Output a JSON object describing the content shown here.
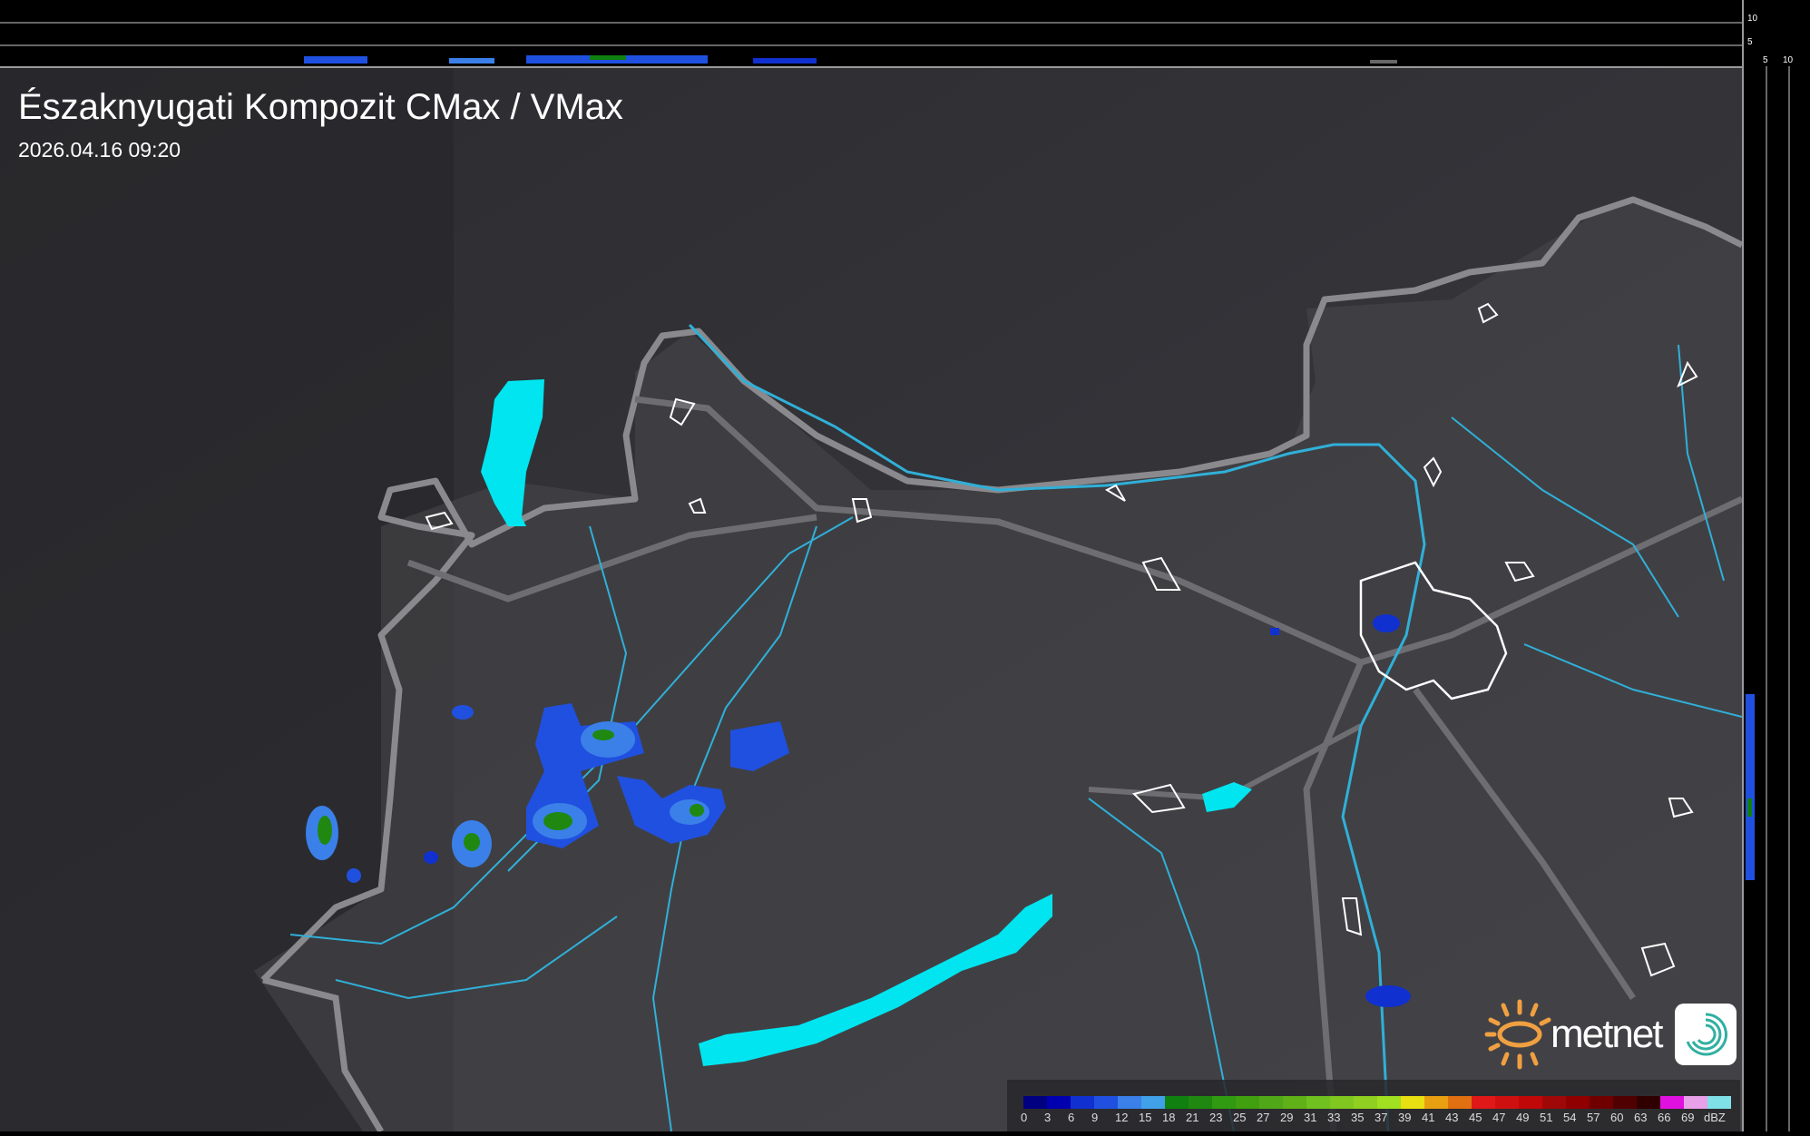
{
  "title": "Északnyugati Kompozit CMax / VMax",
  "timestamp": "2026.04.16 09:20",
  "side_profile_ticks": {
    "vertical": [
      "10",
      "5"
    ],
    "horizontal": [
      "5",
      "10"
    ]
  },
  "legend": {
    "unit": "dBZ",
    "labels": [
      "0",
      "3",
      "6",
      "9",
      "12",
      "15",
      "18",
      "21",
      "23",
      "25",
      "27",
      "29",
      "31",
      "33",
      "35",
      "37",
      "39",
      "41",
      "43",
      "45",
      "47",
      "49",
      "51",
      "54",
      "57",
      "60",
      "63",
      "66",
      "69"
    ],
    "colors": [
      "#000080",
      "#0000b0",
      "#1030d0",
      "#2050e0",
      "#3a80e8",
      "#40a0e8",
      "#108010",
      "#208810",
      "#309a10",
      "#40a010",
      "#50a818",
      "#60b018",
      "#70c020",
      "#80c820",
      "#90d020",
      "#a0e020",
      "#e8e010",
      "#e8a010",
      "#e07010",
      "#e01818",
      "#d01010",
      "#c00808",
      "#a00808",
      "#900000",
      "#700000",
      "#500000",
      "#300000",
      "#e010e0",
      "#e8a0e8",
      "#80e0e8"
    ]
  },
  "logo": {
    "brand": "metnet",
    "sun_color": "#f0a040",
    "app_color": "#30b0a0"
  },
  "colors": {
    "lakes": "#00e5f0",
    "rivers": "#30b0d8",
    "borders": "#8a8a8e",
    "background": "#3a3a3e"
  }
}
